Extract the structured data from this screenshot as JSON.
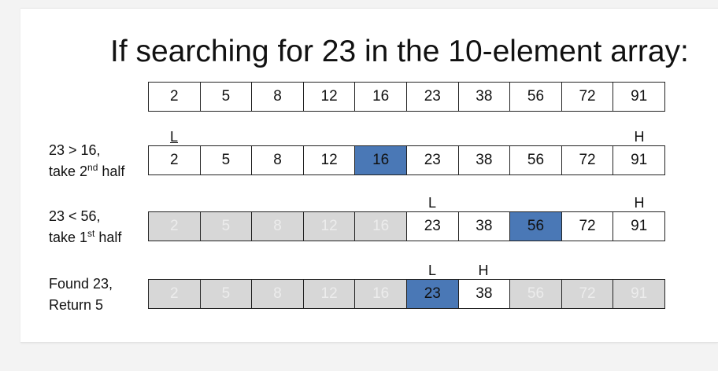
{
  "title": "If searching for 23 in the 10-element array:",
  "array": [
    2,
    5,
    8,
    12,
    16,
    23,
    38,
    56,
    72,
    91
  ],
  "steps": [
    {
      "line1": "23 > 16,",
      "line2_pre": "take 2",
      "line2_sup": "nd",
      "line2_post": " half",
      "L": "L",
      "H": "H",
      "low": 0,
      "high": 9,
      "mid": 4
    },
    {
      "line1": "23 < 56,",
      "line2_pre": "take 1",
      "line2_sup": "st",
      "line2_post": " half",
      "L": "L",
      "H": "H",
      "low": 5,
      "high": 9,
      "mid": 7
    },
    {
      "line1": "Found 23,",
      "line2_pre": "Return 5",
      "line2_sup": "",
      "line2_post": "",
      "L": "L",
      "H": "H",
      "low": 5,
      "high": 6,
      "mid": 5
    }
  ],
  "colors": {
    "mid": "#4a78b6",
    "excluded": "#d7d7d7"
  }
}
